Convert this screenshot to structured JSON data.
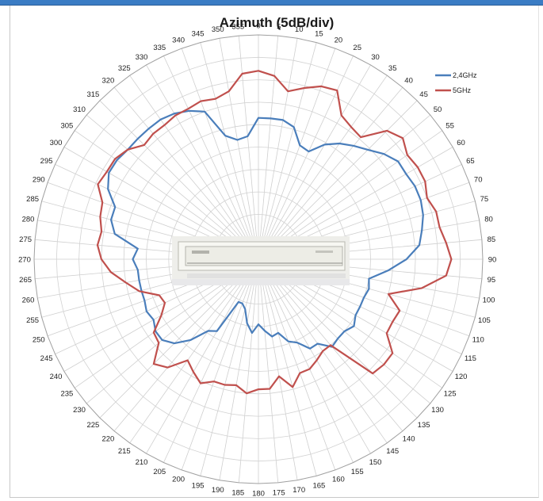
{
  "chart_data": {
    "type": "radar",
    "title": "Azimuth (5dB/div)",
    "angle_labels": [
      "0",
      "5",
      "10",
      "15",
      "20",
      "25",
      "30",
      "35",
      "40",
      "45",
      "50",
      "55",
      "60",
      "65",
      "70",
      "75",
      "80",
      "85",
      "90",
      "95",
      "100",
      "105",
      "110",
      "115",
      "120",
      "125",
      "130",
      "135",
      "140",
      "145",
      "150",
      "155",
      "160",
      "165",
      "170",
      "175",
      "180",
      "185",
      "190",
      "195",
      "200",
      "205",
      "210",
      "215",
      "220",
      "225",
      "230",
      "235",
      "240",
      "245",
      "250",
      "255",
      "260",
      "265",
      "270",
      "275",
      "280",
      "285",
      "290",
      "295",
      "300",
      "305",
      "310",
      "315",
      "320",
      "325",
      "330",
      "335",
      "340",
      "345",
      "350",
      "355"
    ],
    "angle_unit": "degrees",
    "radial_rings": 10,
    "radial_step_db": 5,
    "legend_position": "top-right",
    "grid": true,
    "series": [
      {
        "name": "2,4GHz",
        "color": "#4a7ebb",
        "values": [
          6.3,
          6.3,
          6.3,
          6.1,
          5.4,
          5.3,
          5.9,
          6.3,
          6.6,
          6.9,
          7.3,
          7.6,
          7.6,
          7.7,
          7.7,
          7.6,
          7.4,
          7.2,
          6.6,
          5.8,
          5.0,
          5.1,
          5.0,
          5.0,
          5.0,
          5.2,
          5.0,
          5.0,
          5.1,
          4.6,
          4.6,
          4.1,
          3.9,
          3.4,
          3.5,
          3.2,
          2.9,
          3.3,
          2.9,
          2.3,
          2.1,
          2.1,
          3.7,
          3.9,
          4.7,
          5.3,
          5.6,
          5.6,
          5.4,
          5.5,
          5.4,
          5.4,
          5.4,
          5.4,
          5.6,
          5.4,
          6.5,
          6.8,
          6.8,
          7.4,
          7.7,
          7.7,
          7.6,
          7.6,
          7.6,
          7.6,
          7.5,
          7.3,
          7.0,
          5.7,
          5.4,
          5.5
        ]
      },
      {
        "name": "5GHz",
        "color": "#c0504d",
        "values": [
          8.4,
          8.2,
          7.6,
          7.9,
          8.2,
          8.3,
          7.4,
          7.2,
          7.1,
          8.1,
          8.4,
          8.1,
          8.2,
          8.2,
          8.0,
          8.2,
          8.2,
          8.4,
          8.6,
          8.4,
          7.4,
          6.0,
          6.7,
          6.6,
          6.6,
          7.3,
          7.3,
          7.2,
          5.0,
          5.0,
          5.2,
          5.4,
          5.4,
          5.9,
          5.3,
          5.8,
          5.8,
          6.0,
          5.7,
          5.8,
          5.8,
          6.1,
          5.8,
          5.5,
          6.3,
          6.6,
          5.8,
          5.7,
          5.0,
          4.6,
          4.7,
          5.5,
          6.0,
          6.6,
          7.0,
          7.2,
          7.1,
          7.3,
          7.4,
          7.9,
          7.8,
          7.8,
          7.6,
          7.2,
          7.3,
          7.3,
          7.4,
          7.4,
          7.5,
          7.4,
          7.6,
          8.3
        ]
      }
    ]
  }
}
